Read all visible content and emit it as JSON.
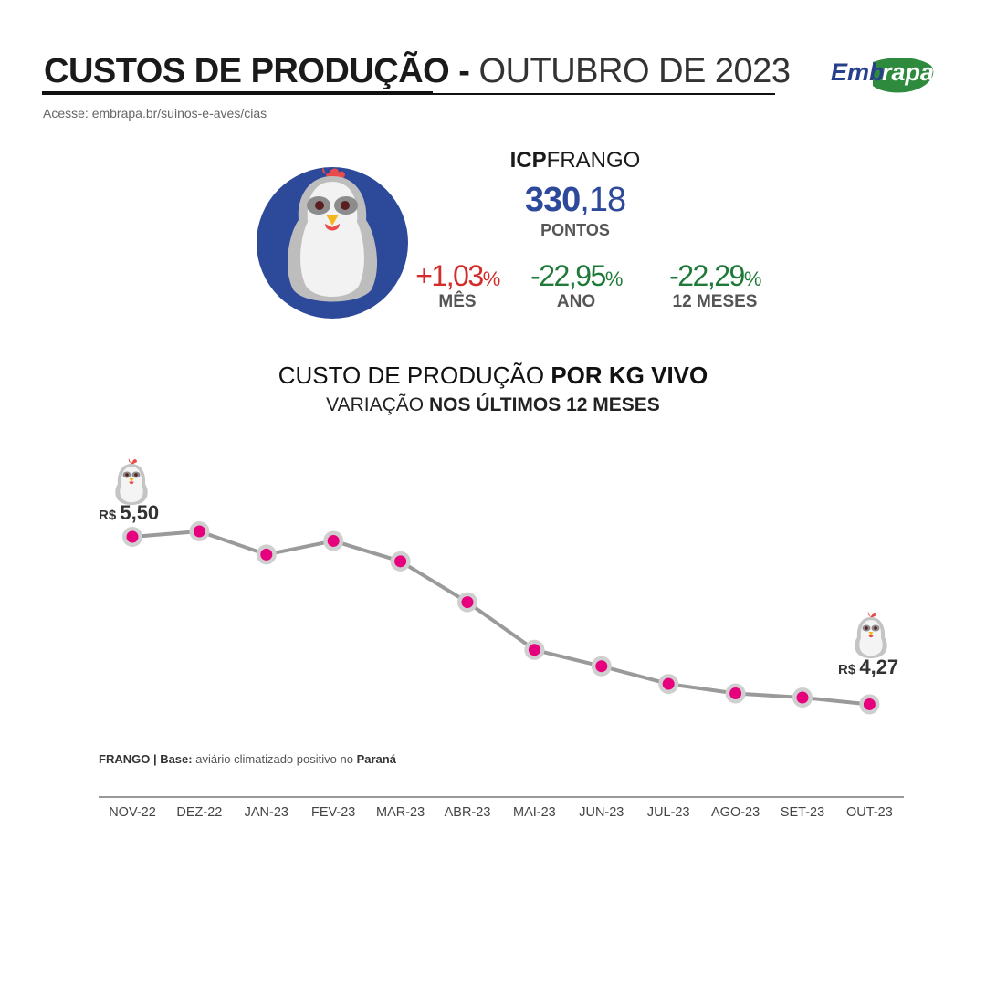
{
  "header": {
    "title_bold": "CUSTOS DE PRODUÇÃO -",
    "title_light": "OUTUBRO DE 2023",
    "source": "Acesse: embrapa.br/suinos-e-aves/cias",
    "logo_text": "Embrapa"
  },
  "icp": {
    "title_bold": "ICP",
    "title_light": "FRANGO",
    "value_int": "330",
    "value_dec": ",18",
    "unit": "PONTOS",
    "stats": {
      "mes": {
        "value": "+1,03",
        "pct": "%",
        "label": "MÊS"
      },
      "ano": {
        "value": "-22,95",
        "pct": "%",
        "label": "ANO"
      },
      "doze": {
        "value": "-22,29",
        "pct": "%",
        "label": "12 MESES"
      }
    }
  },
  "colors": {
    "blue": "#2d4a9a",
    "red": "#d42b2b",
    "green": "#1f7a3a",
    "line": "#9a9a9a",
    "marker": "#e6007e",
    "marker_ring": "#cfcfcf"
  },
  "chart_data": {
    "type": "line",
    "title": "CUSTO DE PRODUÇÃO POR KG VIVO",
    "title_light": "CUSTO DE PRODUÇÃO",
    "title_bold": "POR KG VIVO",
    "subtitle_light": "VARIAÇÃO",
    "subtitle_bold": "NOS ÚLTIMOS 12 MESES",
    "categories": [
      "NOV-22",
      "DEZ-22",
      "JAN-23",
      "FEV-23",
      "MAR-23",
      "ABR-23",
      "MAI-23",
      "JUN-23",
      "JUL-23",
      "AGO-23",
      "SET-23",
      "OUT-23"
    ],
    "values": [
      5.5,
      5.54,
      5.37,
      5.47,
      5.32,
      5.02,
      4.67,
      4.55,
      4.42,
      4.35,
      4.32,
      4.27
    ],
    "first_label_prefix": "R$",
    "first_label_value": "5,50",
    "last_label_prefix": "R$",
    "last_label_value": "4,27",
    "footnote_bold": "FRANGO | Base:",
    "footnote_light": "aviário climatizado positivo no",
    "footnote_place": "Paraná",
    "grid": false
  }
}
